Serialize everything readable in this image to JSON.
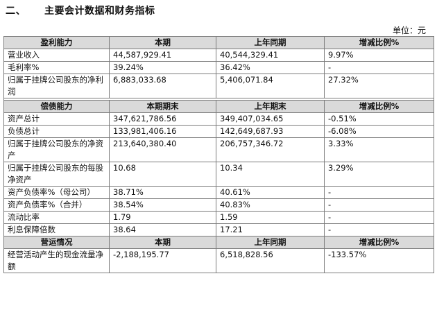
{
  "heading": {
    "number": "二、",
    "title": "主要会计数据和财务指标"
  },
  "unit": "单位：元",
  "sections": [
    {
      "headers": [
        "盈利能力",
        "本期",
        "上年同期",
        "增减比例%"
      ],
      "rows": [
        {
          "label": "营业收入",
          "current": "44,587,929.41",
          "previous": "40,544,329.41",
          "change": "9.97%"
        },
        {
          "label": "毛利率%",
          "current": "39.24%",
          "previous": "36.42%",
          "change": "-"
        },
        {
          "label": "归属于挂牌公司股东的净利润",
          "current": "6,883,033.68",
          "previous": "5,406,071.84",
          "change": "27.32%"
        }
      ]
    },
    {
      "headers": [
        "偿债能力",
        "本期期末",
        "上年期末",
        "增减比例%"
      ],
      "rows": [
        {
          "label": "资产总计",
          "current": "347,621,786.56",
          "previous": "349,407,034.65",
          "change": "-0.51%"
        },
        {
          "label": "负债总计",
          "current": "133,981,406.16",
          "previous": "142,649,687.93",
          "change": "-6.08%"
        },
        {
          "label": "归属于挂牌公司股东的净资产",
          "current": "213,640,380.40",
          "previous": "206,757,346.72",
          "change": "3.33%"
        },
        {
          "label": "归属于挂牌公司股东的每股净资产",
          "current": "10.68",
          "previous": "10.34",
          "change": "3.29%"
        },
        {
          "label": "资产负债率%（母公司）",
          "current": "38.71%",
          "previous": "40.61%",
          "change": "-"
        },
        {
          "label": "资产负债率%（合并）",
          "current": "38.54%",
          "previous": "40.83%",
          "change": "-"
        },
        {
          "label": "流动比率",
          "current": "1.79",
          "previous": "1.59",
          "change": "-"
        },
        {
          "label": "利息保障倍数",
          "current": "38.64",
          "previous": "17.21",
          "change": "-"
        }
      ]
    },
    {
      "headers": [
        "营运情况",
        "本期",
        "上年同期",
        "增减比例%"
      ],
      "rows": [
        {
          "label": "经营活动产生的现金流量净额",
          "current": "-2,188,195.77",
          "previous": "6,518,828.56",
          "change": "-133.57%"
        }
      ]
    }
  ]
}
